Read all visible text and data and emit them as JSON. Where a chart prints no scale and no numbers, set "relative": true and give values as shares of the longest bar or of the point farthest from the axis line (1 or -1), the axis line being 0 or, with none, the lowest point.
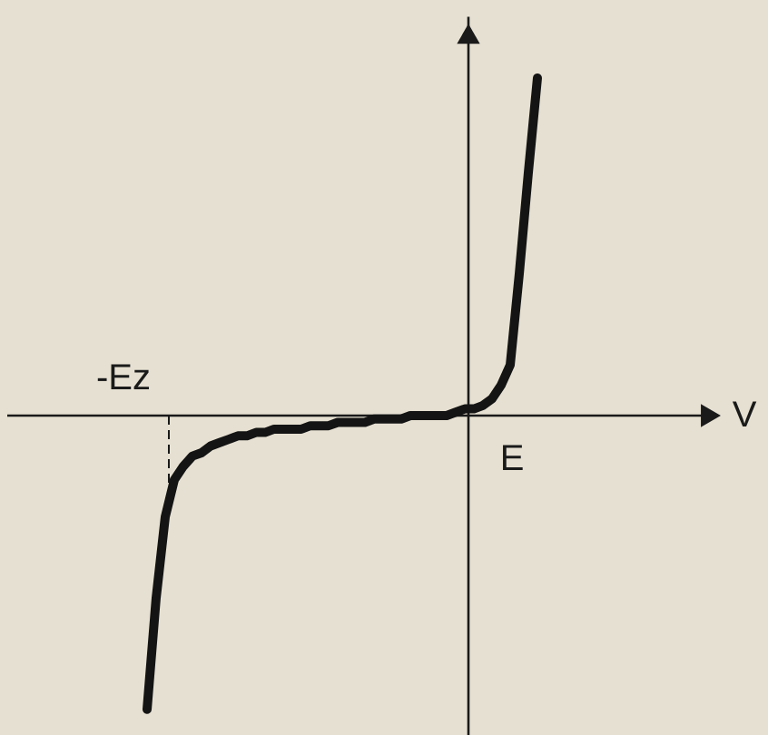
{
  "chart_data": {
    "type": "line",
    "relative": true,
    "annotations": [
      "-Ez",
      "E",
      "V"
    ],
    "categories": [
      null,
      null,
      null,
      null,
      null,
      null,
      null,
      null,
      null,
      null,
      null,
      null,
      null,
      null,
      null,
      null,
      null,
      null,
      null,
      null,
      null,
      null,
      null,
      null,
      null,
      null,
      null,
      null,
      null,
      null,
      null,
      null,
      null,
      null,
      null,
      null,
      null,
      null,
      null,
      null,
      null,
      null,
      null,
      null
    ],
    "series": [
      {
        "color": "#141414",
        "values": [
          -0.87,
          -0.54,
          -0.3,
          -0.19,
          -0.15,
          -0.12,
          -0.11,
          -0.09,
          -0.08,
          -0.07,
          -0.06,
          -0.06,
          -0.05,
          -0.05,
          -0.04,
          -0.04,
          -0.04,
          -0.04,
          -0.03,
          -0.03,
          -0.03,
          -0.02,
          -0.02,
          -0.02,
          -0.02,
          -0.01,
          -0.01,
          -0.01,
          -0.01,
          0,
          0,
          0,
          0,
          0,
          0.01,
          0.02,
          0.02,
          0.03,
          0.05,
          0.09,
          0.15,
          0.42,
          0.72,
          1
        ]
      }
    ],
    "marker": "none",
    "line_style": "solid"
  }
}
